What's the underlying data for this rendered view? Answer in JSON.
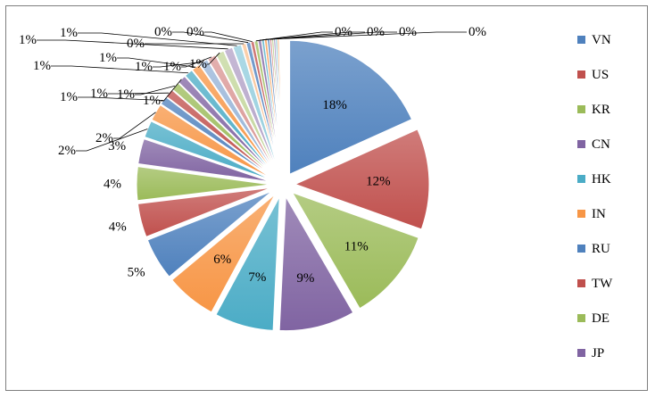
{
  "chart_data": {
    "type": "pie",
    "style": "exploded",
    "legend_position": "right",
    "title": "",
    "slices": [
      {
        "label": "VN",
        "value": 18,
        "display": "18%",
        "color": "#4f81bd"
      },
      {
        "label": "US",
        "value": 12,
        "display": "12%",
        "color": "#c0504d"
      },
      {
        "label": "KR",
        "value": 11,
        "display": "11%",
        "color": "#9bbb59"
      },
      {
        "label": "CN",
        "value": 9,
        "display": "9%",
        "color": "#8064a2"
      },
      {
        "label": "HK",
        "value": 7,
        "display": "7%",
        "color": "#4bacc6"
      },
      {
        "label": "IN",
        "value": 6,
        "display": "6%",
        "color": "#f79646"
      },
      {
        "label": "RU",
        "value": 5,
        "display": "5%",
        "color": "#4f81bd"
      },
      {
        "label": "TW",
        "value": 4,
        "display": "4%",
        "color": "#c0504d"
      },
      {
        "label": "DE",
        "value": 4,
        "display": "4%",
        "color": "#9bbb59"
      },
      {
        "label": "JP",
        "value": 3,
        "display": "3%",
        "color": "#8064a2"
      },
      {
        "label": "",
        "value": 2,
        "display": "2%",
        "color": "#4bacc6"
      },
      {
        "label": "",
        "value": 2,
        "display": "2%",
        "color": "#f79646"
      },
      {
        "label": "",
        "value": 1,
        "display": "1%",
        "color": "#4f81bd"
      },
      {
        "label": "",
        "value": 1,
        "display": "1%",
        "color": "#c0504d"
      },
      {
        "label": "",
        "value": 1,
        "display": "1%",
        "color": "#9bbb59"
      },
      {
        "label": "",
        "value": 1,
        "display": "1%",
        "color": "#8064a2"
      },
      {
        "label": "",
        "value": 1,
        "display": "1%",
        "color": "#4bacc6"
      },
      {
        "label": "",
        "value": 1,
        "display": "1%",
        "color": "#f79646"
      },
      {
        "label": "",
        "value": 1,
        "display": "1%",
        "color": "#95b3d7"
      },
      {
        "label": "",
        "value": 1,
        "display": "1%",
        "color": "#d99694"
      },
      {
        "label": "",
        "value": 1,
        "display": "1%",
        "color": "#c3d69b"
      },
      {
        "label": "",
        "value": 1,
        "display": "1%",
        "color": "#b3a2c7"
      },
      {
        "label": "",
        "value": 1,
        "display": "1%",
        "color": "#93cddd"
      },
      {
        "label": "",
        "value": 0.5,
        "display": "0%",
        "color": "#fac090"
      },
      {
        "label": "",
        "value": 0.5,
        "display": "0%",
        "color": "#4f81bd"
      },
      {
        "label": "",
        "value": 0.4,
        "display": "0%",
        "color": "#c0504d"
      },
      {
        "label": "",
        "value": 0.4,
        "display": "0%",
        "color": "#9bbb59"
      },
      {
        "label": "",
        "value": 0.4,
        "display": "0%",
        "color": "#8064a2"
      },
      {
        "label": "",
        "value": 0.3,
        "display": "0%",
        "color": "#4bacc6"
      },
      {
        "label": "",
        "value": 0.3,
        "display": "0%",
        "color": "#f79646"
      },
      {
        "label": "",
        "value": 0.3,
        "display": "0%",
        "color": "#4f81bd"
      },
      {
        "label": "",
        "value": 0.2,
        "display": "0%",
        "color": "#c0504d"
      },
      {
        "label": "",
        "value": 0.2,
        "display": "0%",
        "color": "#9bbb59"
      },
      {
        "label": "",
        "value": 0.2,
        "display": "0%",
        "color": "#8064a2"
      },
      {
        "label": "",
        "value": 0.2,
        "display": "0%",
        "color": "#4bacc6"
      },
      {
        "label": "",
        "value": 0.2,
        "display": "0%",
        "color": "#f79646"
      },
      {
        "label": "",
        "value": 0.1,
        "display": "0%",
        "color": "#95b3d7"
      },
      {
        "label": "",
        "value": 0.1,
        "display": "0%",
        "color": "#d99694"
      },
      {
        "label": "",
        "value": 0.1,
        "display": "0%",
        "color": "#c3d69b"
      },
      {
        "label": "",
        "value": 0.1,
        "display": "0%",
        "color": "#b3a2c7"
      }
    ],
    "legend": [
      "VN",
      "US",
      "KR",
      "CN",
      "HK",
      "IN",
      "RU",
      "TW",
      "DE",
      "JP"
    ]
  }
}
